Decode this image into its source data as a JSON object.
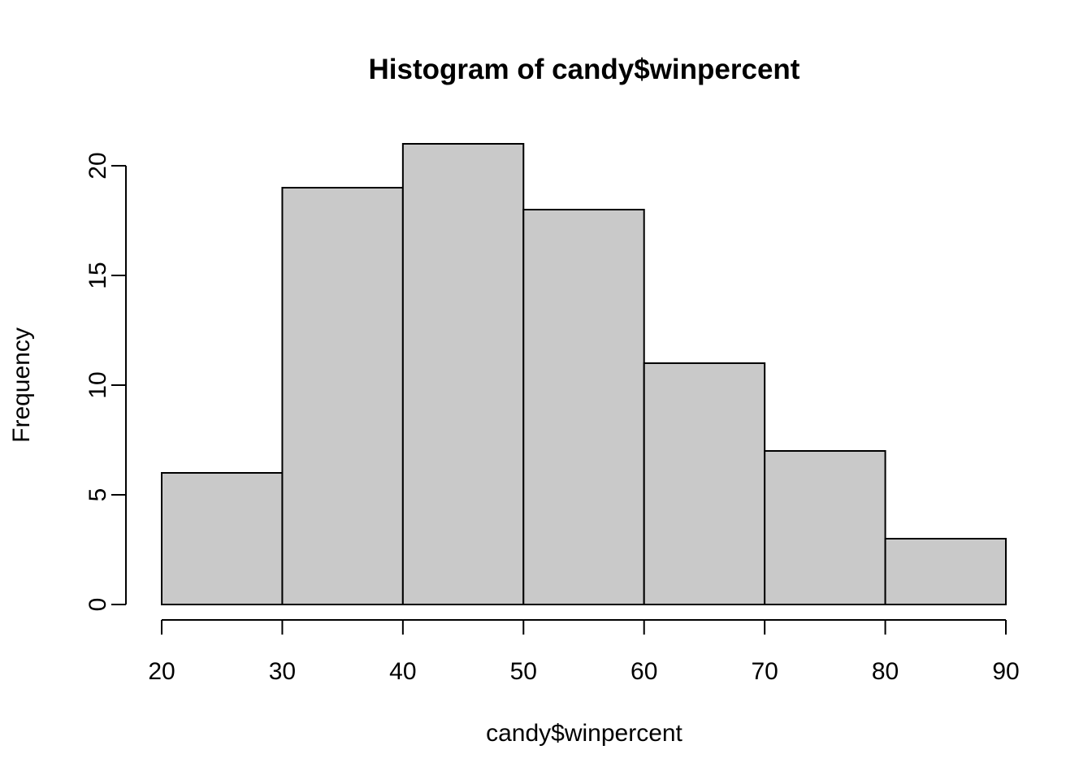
{
  "chart_data": {
    "type": "bar",
    "subtype": "histogram",
    "title": "Histogram of candy$winpercent",
    "xlabel": "candy$winpercent",
    "ylabel": "Frequency",
    "bins": [
      {
        "from": 20,
        "to": 30,
        "count": 6
      },
      {
        "from": 30,
        "to": 40,
        "count": 19
      },
      {
        "from": 40,
        "to": 50,
        "count": 21
      },
      {
        "from": 50,
        "to": 60,
        "count": 18
      },
      {
        "from": 60,
        "to": 70,
        "count": 11
      },
      {
        "from": 70,
        "to": 80,
        "count": 7
      },
      {
        "from": 80,
        "to": 90,
        "count": 3
      }
    ],
    "x_ticks": [
      20,
      30,
      40,
      50,
      60,
      70,
      80,
      90
    ],
    "y_ticks": [
      0,
      5,
      10,
      15,
      20
    ],
    "xlim": [
      20,
      90
    ],
    "ylim": [
      0,
      20
    ],
    "grid": false,
    "legend_position": "none",
    "colors": {
      "bar_fill": "#C9C9C9",
      "bar_stroke": "#000000",
      "axis": "#000000",
      "text": "#000000",
      "background": "#FFFFFF"
    }
  }
}
